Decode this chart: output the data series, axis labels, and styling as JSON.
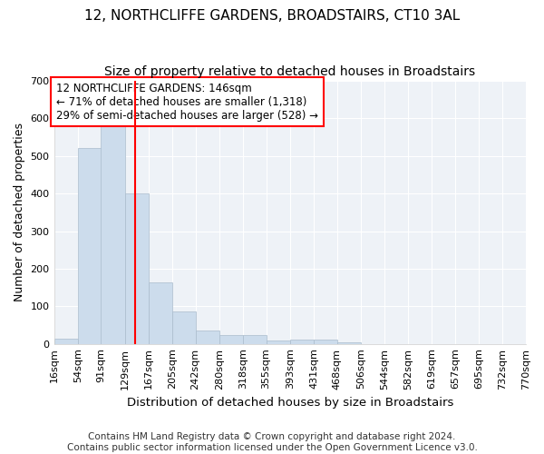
{
  "title1": "12, NORTHCLIFFE GARDENS, BROADSTAIRS, CT10 3AL",
  "title2": "Size of property relative to detached houses in Broadstairs",
  "xlabel": "Distribution of detached houses by size in Broadstairs",
  "ylabel": "Number of detached properties",
  "bar_color": "#ccdcec",
  "bar_edge_color": "#aabccc",
  "vline_x": 146,
  "vline_color": "red",
  "bin_edges": [
    16,
    54,
    91,
    129,
    167,
    205,
    242,
    280,
    318,
    355,
    393,
    431,
    468,
    506,
    544,
    582,
    619,
    657,
    695,
    732,
    770
  ],
  "bar_heights": [
    14,
    522,
    580,
    400,
    163,
    87,
    35,
    23,
    23,
    10,
    12,
    12,
    5,
    0,
    0,
    0,
    0,
    0,
    0,
    0
  ],
  "tick_labels": [
    "16sqm",
    "54sqm",
    "91sqm",
    "129sqm",
    "167sqm",
    "205sqm",
    "242sqm",
    "280sqm",
    "318sqm",
    "355sqm",
    "393sqm",
    "431sqm",
    "468sqm",
    "506sqm",
    "544sqm",
    "582sqm",
    "619sqm",
    "657sqm",
    "695sqm",
    "732sqm",
    "770sqm"
  ],
  "ylim": [
    0,
    700
  ],
  "yticks": [
    0,
    100,
    200,
    300,
    400,
    500,
    600,
    700
  ],
  "annotation_text": "12 NORTHCLIFFE GARDENS: 146sqm\n← 71% of detached houses are smaller (1,318)\n29% of semi-detached houses are larger (528) →",
  "annotation_box_color": "white",
  "annotation_box_edge_color": "red",
  "footer_text": "Contains HM Land Registry data © Crown copyright and database right 2024.\nContains public sector information licensed under the Open Government Licence v3.0.",
  "bg_color": "#eef2f7",
  "grid_color": "white",
  "title_fontsize": 11,
  "subtitle_fontsize": 10,
  "axis_label_fontsize": 9,
  "tick_fontsize": 8,
  "annotation_fontsize": 8.5,
  "footer_fontsize": 7.5
}
